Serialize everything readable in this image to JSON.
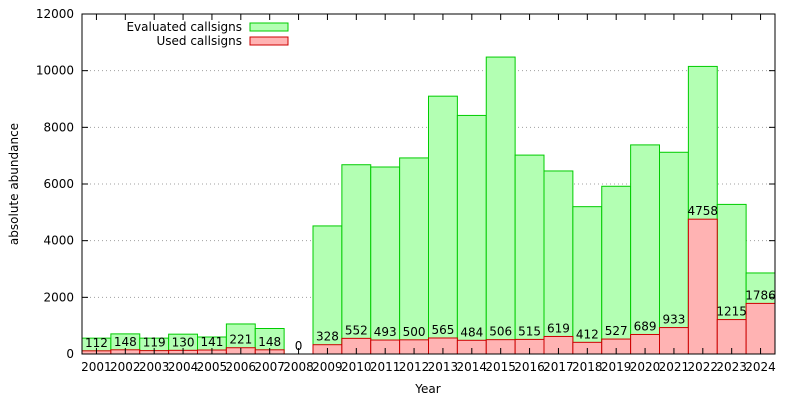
{
  "chart_data": {
    "type": "bar",
    "xlabel": "Year",
    "ylabel": "absolute abundance",
    "ylim": [
      0,
      12000
    ],
    "yticks": [
      0,
      2000,
      4000,
      6000,
      8000,
      10000,
      12000
    ],
    "grid": true,
    "legend_position": "top-left",
    "categories": [
      "2001",
      "2002",
      "2003",
      "2004",
      "2005",
      "2006",
      "2007",
      "2008",
      "2009",
      "2010",
      "2011",
      "2012",
      "2013",
      "2014",
      "2015",
      "2016",
      "2017",
      "2018",
      "2019",
      "2020",
      "2021",
      "2022",
      "2023",
      "2024"
    ],
    "series": [
      {
        "name": "Evaluated callsigns",
        "fill": "#b3ffb3",
        "stroke": "#00cc00",
        "values": [
          560,
          710,
          560,
          700,
          600,
          1060,
          900,
          0,
          4520,
          6680,
          6600,
          6920,
          9100,
          8420,
          10480,
          7020,
          6460,
          5200,
          5920,
          7380,
          7120,
          10150,
          5280,
          2860
        ]
      },
      {
        "name": "Used callsigns",
        "fill": "#ffb3b3",
        "stroke": "#cc0000",
        "values": [
          112,
          148,
          119,
          130,
          141,
          221,
          148,
          0,
          328,
          552,
          493,
          500,
          565,
          484,
          506,
          515,
          619,
          412,
          527,
          689,
          933,
          4758,
          1215,
          1786
        ]
      }
    ],
    "data_labels": [
      "112",
      "148",
      "119",
      "130",
      "141",
      "221",
      "148",
      "0",
      "328",
      "552",
      "493",
      "500",
      "565",
      "484",
      "506",
      "515",
      "619",
      "412",
      "527",
      "689",
      "933",
      "4758",
      "1215",
      "1786"
    ]
  }
}
